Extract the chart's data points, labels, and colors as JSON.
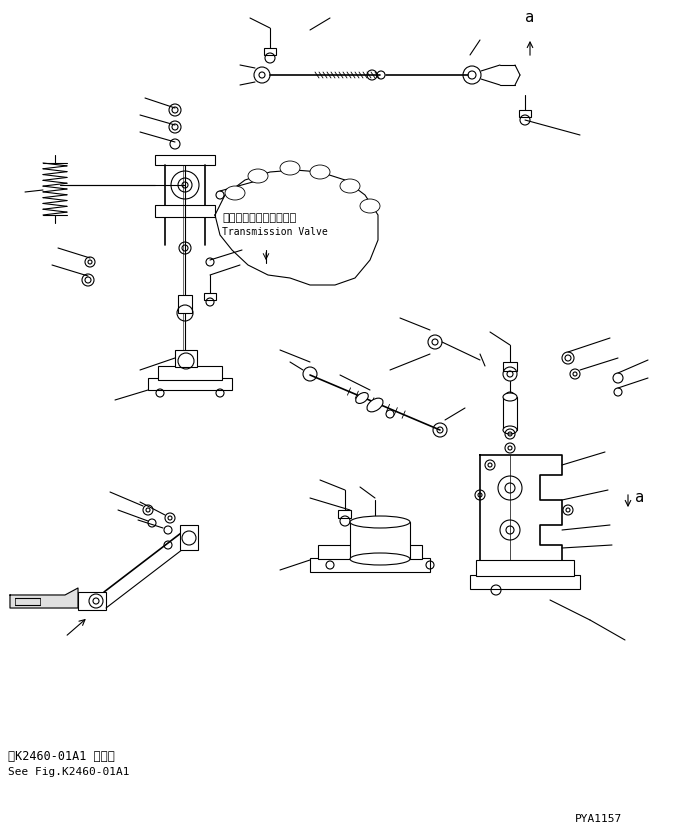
{
  "bg_color": "#ffffff",
  "line_color": "#000000",
  "fig_width": 6.92,
  "fig_height": 8.36,
  "dpi": 100,
  "transmission_valve_label_jp": "トランスミションバルブ",
  "transmission_valve_label_en": "Transmission Valve",
  "bottom_ref_jp": "第K2460-01A1 図参照",
  "bottom_ref_en": "See Fig.K2460-01A1",
  "part_number": "PYA1157",
  "arrow_a_label": "a"
}
